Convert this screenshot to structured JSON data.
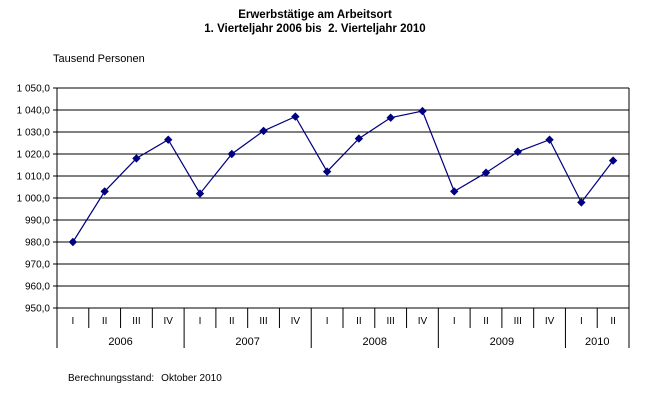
{
  "chart_data": {
    "type": "line",
    "title": "Erwerbstätige am Arbeitsort",
    "subtitle": "1. Vierteljahr 2006 bis  2. Vierteljahr 2010",
    "ylabel": "Tausend Personen",
    "ylim": [
      950,
      1050
    ],
    "ytick_step": 10,
    "ytick_labels": [
      "1 050,0",
      "1 040,0",
      "1 030,0",
      "1 020,0",
      "1 010,0",
      "1 000,0",
      "990,0",
      "980,0",
      "970,0",
      "960,0",
      "950,0"
    ],
    "quarters": [
      "I",
      "II",
      "III",
      "IV",
      "I",
      "II",
      "III",
      "IV",
      "I",
      "II",
      "III",
      "IV",
      "I",
      "II",
      "III",
      "IV",
      "I",
      "II"
    ],
    "years": [
      {
        "label": "2006",
        "span": 4
      },
      {
        "label": "2007",
        "span": 4
      },
      {
        "label": "2008",
        "span": 4
      },
      {
        "label": "2009",
        "span": 4
      },
      {
        "label": "2010",
        "span": 2
      }
    ],
    "values": [
      980,
      1003,
      1018,
      1026.5,
      1002,
      1020,
      1030.5,
      1037,
      1012,
      1027,
      1036.5,
      1039.5,
      1003,
      1011.5,
      1021,
      1026.5,
      998,
      1017
    ],
    "series_color": "#000080",
    "grid_color": "#000000",
    "marker": "diamond",
    "grid": true,
    "legend": "none"
  },
  "footer": {
    "label": "Berechnungsstand:",
    "value": "Oktober 2010"
  }
}
